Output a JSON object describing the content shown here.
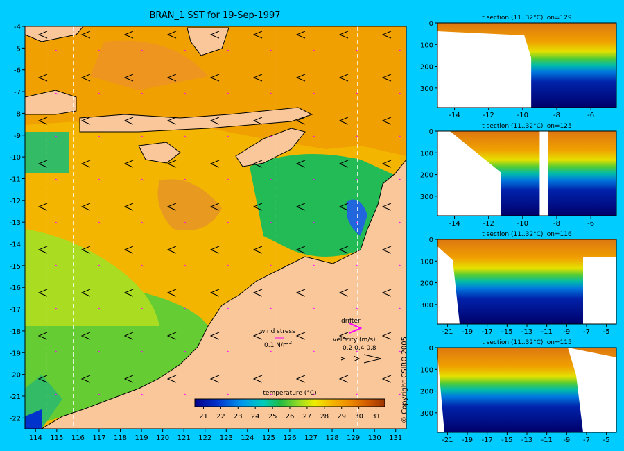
{
  "colors": {
    "background": "#00ccff",
    "land": "#f9c79a",
    "coast": "#000000",
    "drifter": "#ff00ff",
    "section_line": "#ffffff"
  },
  "map": {
    "title": "BRAN_1 SST for 19-Sep-1997",
    "x_ticks": [
      "114",
      "115",
      "116",
      "117",
      "118",
      "119",
      "120",
      "121",
      "122",
      "123",
      "124",
      "125",
      "126",
      "127",
      "128",
      "129",
      "130",
      "131"
    ],
    "y_ticks": [
      "-4",
      "-5",
      "-6",
      "-7",
      "-8",
      "-9",
      "-10",
      "-11",
      "-12",
      "-13",
      "-14",
      "-15",
      "-16",
      "-17",
      "-18",
      "-19",
      "-20",
      "-21",
      "-22"
    ],
    "section_lons": [
      114.5,
      115.8,
      125.3,
      129.2
    ],
    "legend": {
      "wind_label": "wind stress",
      "wind_scale": "0.1 N/m",
      "wind_scale_sup": "2",
      "drifter_label": "drifter",
      "velocity_label": "velocity (m/s)",
      "velocity_scale": "0.2 0.4 0.8"
    },
    "colorbar": {
      "label": "temperature (°C)",
      "ticks": [
        "21",
        "22",
        "23",
        "24",
        "25",
        "26",
        "27",
        "28",
        "29",
        "30",
        "31"
      ],
      "range": [
        20.5,
        31.5
      ]
    }
  },
  "chart_data": [
    {
      "type": "heatmap",
      "title": "BRAN_1 SST for 19-Sep-1997",
      "xlim": [
        113.5,
        131.5
      ],
      "ylim": [
        -22.5,
        -4
      ],
      "colorbar_range": [
        20.5,
        31.5
      ],
      "colorbar_label": "temperature (°C)",
      "section_longitudes": [
        114.5,
        115.8,
        125.3,
        129.2
      ]
    },
    {
      "type": "heatmap",
      "title": "t section (11..32°C) lon=129",
      "xlim": [
        -15,
        -4.5
      ],
      "ylim": [
        390,
        0
      ],
      "x_ticks": [
        "-14",
        "-12",
        "-10",
        "-8",
        "-6"
      ],
      "y_ticks": [
        "0",
        "100",
        "200",
        "300"
      ],
      "coast_lat": -9.5,
      "bottom_depth_m": 390
    },
    {
      "type": "heatmap",
      "title": "t section (11..32°C) lon=125",
      "xlim": [
        -15,
        -4.5
      ],
      "ylim": [
        390,
        0
      ],
      "x_ticks": [
        "-14",
        "-12",
        "-10",
        "-8",
        "-6"
      ],
      "y_ticks": [
        "0",
        "100",
        "200",
        "300"
      ],
      "land_gap_lat": [
        -9,
        -8.5
      ]
    },
    {
      "type": "heatmap",
      "title": "t section (11..32°C) lon=116",
      "xlim": [
        -22,
        -4
      ],
      "ylim": [
        390,
        0
      ],
      "x_ticks": [
        "-21",
        "-19",
        "-17",
        "-15",
        "-13",
        "-11",
        "-9",
        "-7",
        "-5"
      ],
      "y_ticks": [
        "0",
        "100",
        "200",
        "300"
      ]
    },
    {
      "type": "heatmap",
      "title": "t section (11..32°C) lon=115",
      "xlim": [
        -22,
        -4
      ],
      "ylim": [
        390,
        0
      ],
      "x_ticks": [
        "-21",
        "-19",
        "-17",
        "-15",
        "-13",
        "-11",
        "-9",
        "-7",
        "-5"
      ],
      "y_ticks": [
        "0",
        "100",
        "200",
        "300"
      ]
    }
  ],
  "copyright": "© Copyright CSIRO 2005"
}
